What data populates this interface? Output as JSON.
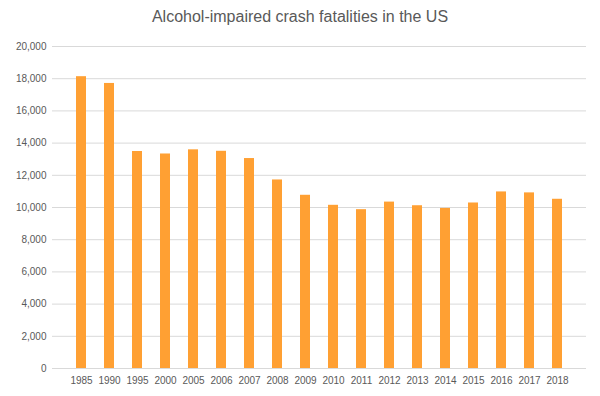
{
  "chart_data": {
    "type": "bar",
    "title": "Alcohol-impaired crash fatalities in the US",
    "categories": [
      "1985",
      "1990",
      "1995",
      "2000",
      "2005",
      "2006",
      "2007",
      "2008",
      "2009",
      "2010",
      "2011",
      "2012",
      "2013",
      "2014",
      "2015",
      "2016",
      "2017",
      "2018"
    ],
    "values": [
      18125,
      17705,
      13478,
      13324,
      13582,
      13491,
      13041,
      11711,
      10759,
      10136,
      9865,
      10336,
      10110,
      9943,
      10280,
      10967,
      10908,
      10511
    ],
    "color": "#ffa033",
    "ylim": [
      0,
      20000
    ],
    "yticks": [
      0,
      {
        "value": 2000,
        "label": "2,000"
      },
      {
        "value": 4000,
        "label": "4,000"
      },
      {
        "value": 6000,
        "label": "6,000"
      },
      {
        "value": 8000,
        "label": "8,000"
      },
      {
        "value": 10000,
        "label": "10,000"
      },
      {
        "value": 12000,
        "label": "12,000"
      },
      {
        "value": 14000,
        "label": "14,000"
      },
      {
        "value": 16000,
        "label": "16,000"
      },
      {
        "value": 18000,
        "label": "18,000"
      },
      {
        "value": 20000,
        "label": "20,000"
      }
    ],
    "grid": true
  }
}
